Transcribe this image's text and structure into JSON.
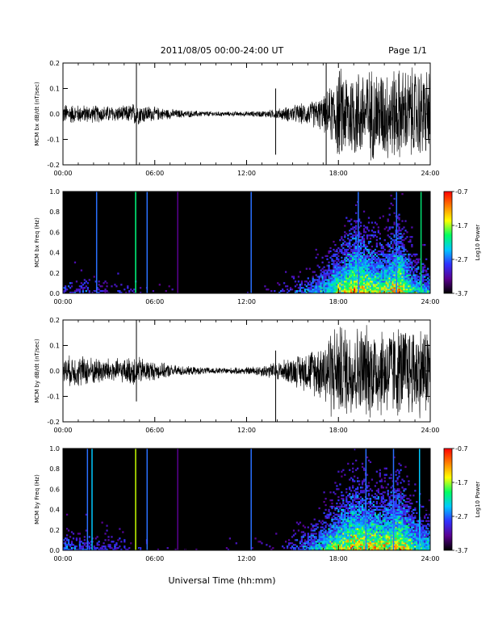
{
  "header": {
    "title": "2011/08/05  00:00-24:00 UT",
    "page": "Page 1/1"
  },
  "footer": {
    "xlabel": "Universal Time (hh:mm)"
  },
  "time_ticks": [
    "00:00",
    "06:00",
    "12:00",
    "18:00",
    "24:00"
  ],
  "colorbar": {
    "label": "Log10 Power",
    "tick_labels": [
      "-0.7",
      "-1.7",
      "-2.7",
      "-3.7"
    ],
    "tick_values": [
      -0.7,
      -1.7,
      -2.7,
      -3.7
    ],
    "range": [
      -3.7,
      -0.7
    ],
    "colors": [
      "#000000",
      "#5a0090",
      "#3030ff",
      "#00c8ff",
      "#00ff60",
      "#ffff00",
      "#ff7f00",
      "#ff0000"
    ]
  },
  "chart_data": [
    {
      "type": "line",
      "ylabel": "MCM bx dB/dt (nT/sec)",
      "xlim": [
        0,
        24
      ],
      "ylim": [
        -0.2,
        0.2
      ],
      "y_ticks": [
        "0.2",
        "0.1",
        "0.0",
        "-0.1",
        "-0.2"
      ],
      "envelope": {
        "x": [
          0,
          1,
          2,
          3,
          4,
          4.7,
          5,
          6,
          7,
          8,
          9,
          10,
          11,
          12,
          13,
          14,
          15,
          16,
          17,
          17.5,
          18,
          19,
          20,
          21,
          22,
          23,
          24
        ],
        "amp": [
          0.045,
          0.04,
          0.038,
          0.036,
          0.034,
          0.05,
          0.045,
          0.03,
          0.022,
          0.016,
          0.013,
          0.011,
          0.01,
          0.011,
          0.014,
          0.022,
          0.038,
          0.05,
          0.075,
          0.12,
          0.2,
          0.2,
          0.2,
          0.2,
          0.2,
          0.2,
          0.2
        ]
      },
      "spikes": [
        {
          "x": 4.8,
          "ymin": -0.2,
          "ymax": 0.2
        },
        {
          "x": 13.9,
          "ymin": -0.16,
          "ymax": 0.1
        },
        {
          "x": 17.2,
          "ymin": -0.2,
          "ymax": 0.2
        }
      ]
    },
    {
      "type": "heatmap",
      "ylabel": "MCM bx Freq (Hz)",
      "xlim": [
        0,
        24
      ],
      "ylim": [
        0,
        1
      ],
      "y_ticks": [
        "1.0",
        "0.8",
        "0.6",
        "0.4",
        "0.2",
        "0.0"
      ],
      "activity": {
        "x": [
          0,
          2,
          4,
          6,
          8,
          10,
          12,
          14,
          15,
          16,
          17,
          18,
          19,
          20,
          21,
          22,
          23,
          24
        ],
        "level": [
          0.3,
          0.25,
          0.22,
          0.15,
          0.12,
          0.1,
          0.12,
          0.2,
          0.3,
          0.4,
          0.55,
          0.75,
          0.95,
          0.85,
          0.8,
          0.95,
          0.6,
          0.5
        ]
      },
      "vertical_lines": [
        {
          "x": 2.2,
          "color": "#2a70ff"
        },
        {
          "x": 4.75,
          "color": "#00ff80"
        },
        {
          "x": 5.5,
          "color": "#2a70ff"
        },
        {
          "x": 7.5,
          "color": "#5a0090"
        },
        {
          "x": 12.3,
          "color": "#2a70ff"
        },
        {
          "x": 19.3,
          "color": "#2a70ff"
        },
        {
          "x": 21.8,
          "color": "#2a70ff"
        },
        {
          "x": 23.4,
          "color": "#00e070"
        }
      ]
    },
    {
      "type": "line",
      "ylabel": "MCM by dB/dt (nT/sec)",
      "xlim": [
        0,
        24
      ],
      "ylim": [
        -0.2,
        0.2
      ],
      "y_ticks": [
        "0.2",
        "0.1",
        "0.0",
        "-0.1",
        "-0.2"
      ],
      "envelope": {
        "x": [
          0,
          1,
          2,
          3,
          4,
          4.7,
          5,
          6,
          7,
          8,
          9,
          10,
          11,
          12,
          13,
          14,
          15,
          16,
          17,
          17.5,
          18,
          19,
          20,
          21,
          22,
          23,
          24
        ],
        "amp": [
          0.06,
          0.07,
          0.06,
          0.055,
          0.05,
          0.07,
          0.06,
          0.04,
          0.028,
          0.02,
          0.016,
          0.014,
          0.014,
          0.016,
          0.025,
          0.04,
          0.06,
          0.09,
          0.13,
          0.2,
          0.2,
          0.2,
          0.2,
          0.2,
          0.2,
          0.2,
          0.2
        ]
      },
      "spikes": [
        {
          "x": 4.8,
          "ymin": -0.12,
          "ymax": 0.2
        },
        {
          "x": 13.9,
          "ymin": -0.2,
          "ymax": 0.08
        }
      ]
    },
    {
      "type": "heatmap",
      "ylabel": "MCM by Freq (Hz)",
      "xlim": [
        0,
        24
      ],
      "ylim": [
        0,
        1
      ],
      "y_ticks": [
        "1.0",
        "0.8",
        "0.6",
        "0.4",
        "0.2",
        "0.0"
      ],
      "activity": {
        "x": [
          0,
          2,
          4,
          6,
          8,
          10,
          12,
          14,
          15,
          16,
          17,
          18,
          19,
          20,
          21,
          22,
          23,
          24
        ],
        "level": [
          0.35,
          0.3,
          0.25,
          0.15,
          0.12,
          0.1,
          0.12,
          0.2,
          0.3,
          0.45,
          0.6,
          0.8,
          0.95,
          0.9,
          0.85,
          0.95,
          0.7,
          0.55
        ]
      },
      "vertical_lines": [
        {
          "x": 1.6,
          "color": "#2a70ff"
        },
        {
          "x": 1.9,
          "color": "#00c8ff"
        },
        {
          "x": 4.75,
          "color": "#c8ff00"
        },
        {
          "x": 5.5,
          "color": "#2a70ff"
        },
        {
          "x": 7.5,
          "color": "#5a0090"
        },
        {
          "x": 12.3,
          "color": "#2a70ff"
        },
        {
          "x": 19.8,
          "color": "#2a70ff"
        },
        {
          "x": 21.6,
          "color": "#2a70ff"
        },
        {
          "x": 23.3,
          "color": "#00c8ff"
        }
      ]
    }
  ]
}
